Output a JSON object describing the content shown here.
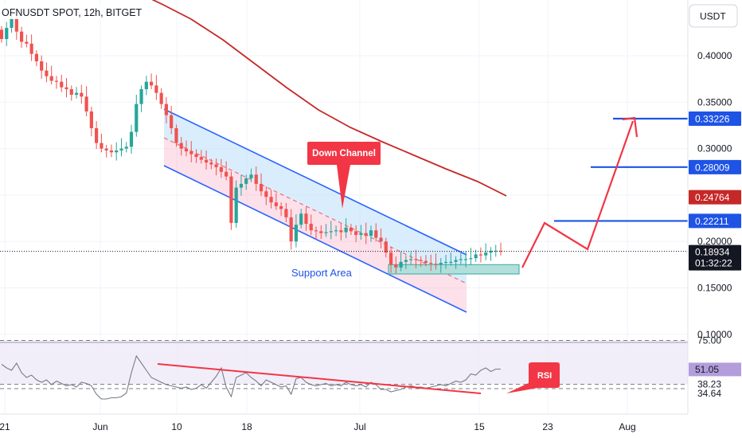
{
  "header": {
    "symbol_title": "OFNUSDT SPOT, 12h, BITGET"
  },
  "currency_button": {
    "label": "USDT"
  },
  "colors": {
    "up": "#26a69a",
    "down": "#ef5350",
    "channel": "#2962ff",
    "channel_fill": "#bbdefb",
    "support_fill": "#b2dfdb",
    "ma": "#c62828",
    "annotation": "#f23645",
    "target_line": "#1e53e5",
    "rsi_line": "#787b86",
    "rsi_band": "#7e57c2"
  },
  "price_axis": {
    "ticks": [
      "0.40000",
      "0.35000",
      "0.30000",
      "0.25000",
      "0.20000",
      "0.15000",
      "0.10000"
    ],
    "badges": [
      {
        "value": "0.33226",
        "style": "blue"
      },
      {
        "value": "0.28009",
        "style": "blue"
      },
      {
        "value": "0.24764",
        "style": "red"
      },
      {
        "value": "0.22211",
        "style": "blue"
      }
    ],
    "current": {
      "price": "0.18934",
      "countdown": "01:32:22"
    }
  },
  "rsi_axis": {
    "ticks": [
      "75.00",
      "38.23",
      "34.64"
    ],
    "current": "51.05"
  },
  "time_axis": {
    "labels": [
      "21",
      "Jun",
      "10",
      "18",
      "Jul",
      "15",
      "23",
      "Aug"
    ]
  },
  "annotations": {
    "down_channel": "Down Channel",
    "support_area": "Support Area",
    "rsi": "RSI"
  },
  "chart_data": [
    {
      "type": "candlestick",
      "title": "OFNUSDT SPOT, 12h, BITGET",
      "interval": "12h",
      "ylim": [
        0.09,
        0.455
      ],
      "y_ticks": [
        0.1,
        0.15,
        0.2,
        0.25,
        0.3,
        0.35,
        0.4
      ],
      "x_tick_labels": [
        "21",
        "Jun",
        "10",
        "18",
        "Jul",
        "15",
        "23",
        "Aug"
      ],
      "last_price": 0.18934,
      "moving_average_last": 0.24764,
      "target_levels": [
        0.22211,
        0.28009,
        0.33226
      ],
      "support_area": [
        0.165,
        0.175
      ],
      "closes": [
        0.418,
        0.43,
        0.44,
        0.426,
        0.415,
        0.413,
        0.402,
        0.394,
        0.384,
        0.378,
        0.373,
        0.372,
        0.366,
        0.364,
        0.358,
        0.36,
        0.356,
        0.34,
        0.322,
        0.306,
        0.3,
        0.298,
        0.296,
        0.298,
        0.3,
        0.302,
        0.318,
        0.348,
        0.364,
        0.372,
        0.368,
        0.36,
        0.348,
        0.336,
        0.322,
        0.306,
        0.3,
        0.297,
        0.294,
        0.291,
        0.288,
        0.285,
        0.283,
        0.28,
        0.275,
        0.27,
        0.22,
        0.258,
        0.262,
        0.268,
        0.272,
        0.262,
        0.254,
        0.248,
        0.242,
        0.238,
        0.235,
        0.226,
        0.2,
        0.218,
        0.23,
        0.219,
        0.212,
        0.211,
        0.209,
        0.21,
        0.211,
        0.212,
        0.21,
        0.215,
        0.211,
        0.207,
        0.209,
        0.206,
        0.212,
        0.204,
        0.2,
        0.188,
        0.175,
        0.172,
        0.178,
        0.18,
        0.181,
        0.18,
        0.179,
        0.177,
        0.176,
        0.175,
        0.177,
        0.178,
        0.178,
        0.18,
        0.181,
        0.181,
        0.182,
        0.186,
        0.185,
        0.188,
        0.19,
        0.19,
        0.189
      ]
    },
    {
      "type": "line",
      "title": "RSI",
      "ylim": [
        20,
        80
      ],
      "levels": [
        75.0,
        38.23,
        34.64
      ],
      "last_value": 51.05,
      "values": [
        55,
        52,
        50,
        56,
        48,
        44,
        46,
        42,
        40,
        42,
        38,
        41,
        39,
        37,
        38,
        36,
        40,
        39,
        37,
        30,
        26,
        26,
        27,
        27,
        28,
        31,
        48,
        62,
        56,
        50,
        44,
        42,
        40,
        38,
        37,
        36,
        35,
        36,
        34,
        35,
        38,
        35,
        40,
        45,
        52,
        36,
        28,
        44,
        46,
        48,
        44,
        41,
        37,
        42,
        40,
        38,
        36,
        37,
        30,
        43,
        44,
        40,
        38,
        37,
        38,
        39,
        37,
        38,
        37,
        40,
        38,
        37,
        38,
        36,
        40,
        38,
        34,
        34,
        32,
        33,
        34,
        36,
        37,
        36,
        36,
        35,
        36,
        37,
        38,
        37,
        39,
        41,
        40,
        42,
        47,
        46,
        50,
        52,
        49,
        51,
        51
      ]
    }
  ]
}
